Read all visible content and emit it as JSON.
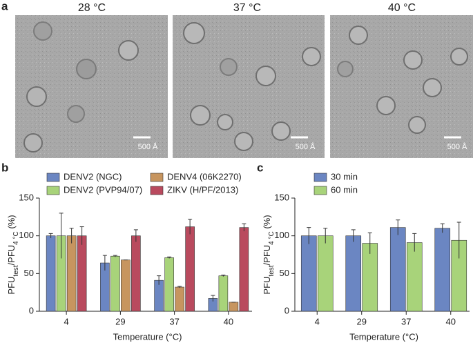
{
  "panel_labels": [
    "a",
    "b",
    "c"
  ],
  "micrographs": [
    {
      "title": "28 °C",
      "scale_bar": "500 Å"
    },
    {
      "title": "37 °C",
      "scale_bar": "500 Å"
    },
    {
      "title": "40 °C",
      "scale_bar": "500 Å"
    }
  ],
  "chart_data": [
    {
      "type": "bar",
      "categories": [
        "4",
        "29",
        "37",
        "40"
      ],
      "series": [
        {
          "name": "DENV2 (NGC)",
          "color": "#6b86c2",
          "values": [
            100,
            64,
            41,
            17
          ],
          "errors": [
            3,
            10,
            6,
            4
          ]
        },
        {
          "name": "DENV2 (PVP94/07)",
          "color": "#a8d37a",
          "values": [
            100,
            73,
            71,
            47
          ],
          "errors": [
            30,
            1,
            1,
            1
          ]
        },
        {
          "name": "DENV4 (06K2270)",
          "color": "#c7955f",
          "values": [
            100,
            68,
            32,
            12
          ],
          "errors": [
            10,
            0,
            1,
            0
          ]
        },
        {
          "name": "ZIKV (H/PF/2013)",
          "color": "#b94a5e",
          "values": [
            100,
            100,
            112,
            111
          ],
          "errors": [
            12,
            8,
            10,
            5
          ]
        }
      ],
      "ylim": [
        0,
        150
      ],
      "yticks": [
        0,
        50,
        100,
        150
      ],
      "ylabel": [
        "PFU",
        "test",
        "/PFU",
        "4 °C",
        " (%)"
      ],
      "xlabel": "Temperature (°C)"
    },
    {
      "type": "bar",
      "categories": [
        "4",
        "29",
        "37",
        "40"
      ],
      "series": [
        {
          "name": "30 min",
          "color": "#6b86c2",
          "values": [
            100,
            100,
            111,
            110
          ],
          "errors": [
            11,
            8,
            10,
            6
          ]
        },
        {
          "name": "60 min",
          "color": "#a8d37a",
          "values": [
            100,
            90,
            91,
            94
          ],
          "errors": [
            10,
            14,
            12,
            24
          ]
        }
      ],
      "ylim": [
        0,
        150
      ],
      "yticks": [
        0,
        50,
        100,
        150
      ],
      "ylabel": [
        "PFU",
        "test",
        "/PFU",
        "4 °C",
        " (%)"
      ],
      "xlabel": "Temperature (°C)"
    }
  ]
}
